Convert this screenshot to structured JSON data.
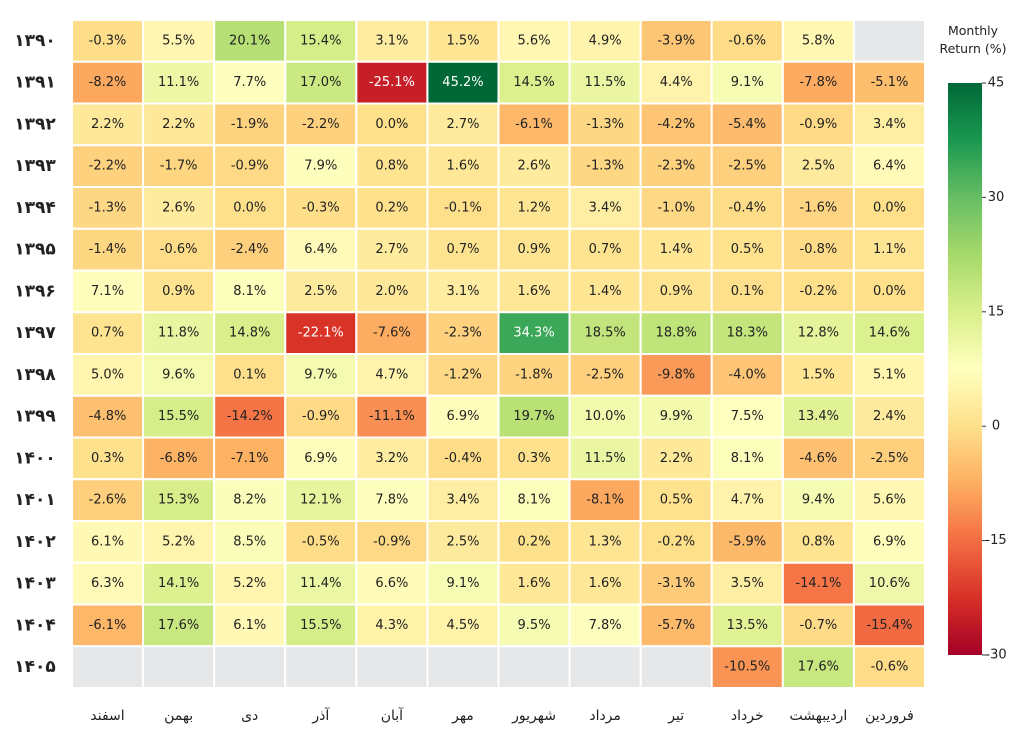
{
  "chart_data": {
    "type": "heatmap",
    "rows": [
      "۱۳۹۰",
      "۱۳۹۱",
      "۱۳۹۲",
      "۱۳۹۳",
      "۱۳۹۴",
      "۱۳۹۵",
      "۱۳۹۶",
      "۱۳۹۷",
      "۱۳۹۸",
      "۱۳۹۹",
      "۱۴۰۰",
      "۱۴۰۱",
      "۱۴۰۲",
      "۱۴۰۳",
      "۱۴۰۴",
      "۱۴۰۵"
    ],
    "columns": [
      "اسفند",
      "بهمن",
      "دی",
      "آذر",
      "آبان",
      "مهر",
      "شهریور",
      "مرداد",
      "تیر",
      "خرداد",
      "اردیبهشت",
      "فروردین"
    ],
    "values": [
      [
        -0.3,
        5.5,
        20.1,
        15.4,
        3.1,
        1.5,
        5.6,
        4.9,
        -3.9,
        -0.6,
        5.8,
        null
      ],
      [
        -8.2,
        11.1,
        7.7,
        17.0,
        -25.1,
        45.2,
        14.5,
        11.5,
        4.4,
        9.1,
        -7.8,
        -5.1
      ],
      [
        2.2,
        2.2,
        -1.9,
        -2.2,
        0.0,
        2.7,
        -6.1,
        -1.3,
        -4.2,
        -5.4,
        -0.9,
        3.4
      ],
      [
        -2.2,
        -1.7,
        -0.9,
        7.9,
        0.8,
        1.6,
        2.6,
        -1.3,
        -2.3,
        -2.5,
        2.5,
        6.4
      ],
      [
        -1.3,
        2.6,
        0.0,
        -0.3,
        0.2,
        -0.1,
        1.2,
        3.4,
        -1.0,
        -0.4,
        -1.6,
        0.0
      ],
      [
        -1.4,
        -0.6,
        -2.4,
        6.4,
        2.7,
        0.7,
        0.9,
        0.7,
        1.4,
        0.5,
        -0.8,
        1.1
      ],
      [
        7.1,
        0.9,
        8.1,
        2.5,
        2.0,
        3.1,
        1.6,
        1.4,
        0.9,
        0.1,
        -0.2,
        0.0
      ],
      [
        0.7,
        11.8,
        14.8,
        -22.1,
        -7.6,
        -2.3,
        34.3,
        18.5,
        18.8,
        18.3,
        12.8,
        14.6
      ],
      [
        5.0,
        9.6,
        0.1,
        9.7,
        4.7,
        -1.2,
        -1.8,
        -2.5,
        -9.8,
        -4.0,
        1.5,
        5.1
      ],
      [
        -4.8,
        15.5,
        -14.2,
        -0.9,
        -11.1,
        6.9,
        19.7,
        10.0,
        9.9,
        7.5,
        13.4,
        2.4
      ],
      [
        0.3,
        -6.8,
        -7.1,
        6.9,
        3.2,
        -0.4,
        0.3,
        11.5,
        2.2,
        8.1,
        -4.6,
        -2.5
      ],
      [
        -2.6,
        15.3,
        8.2,
        12.1,
        7.8,
        3.4,
        8.1,
        -8.1,
        0.5,
        4.7,
        9.4,
        5.6
      ],
      [
        6.1,
        5.2,
        8.5,
        -0.5,
        -0.9,
        2.5,
        0.2,
        1.3,
        -0.2,
        -5.9,
        0.8,
        6.9
      ],
      [
        6.3,
        14.1,
        5.2,
        11.4,
        6.6,
        9.1,
        1.6,
        1.6,
        -3.1,
        3.5,
        -14.1,
        10.6
      ],
      [
        -6.1,
        17.6,
        6.1,
        15.5,
        4.3,
        4.5,
        9.5,
        7.8,
        -5.7,
        13.5,
        -0.7,
        -15.4
      ],
      [
        null,
        null,
        null,
        null,
        null,
        null,
        null,
        null,
        null,
        -10.5,
        17.6,
        -0.6
      ]
    ],
    "value_labels": [
      [
        "-0.3%",
        "5.5%",
        "20.1%",
        "15.4%",
        "3.1%",
        "1.5%",
        "5.6%",
        "4.9%",
        "-3.9%",
        "-0.6%",
        "5.8%",
        null
      ],
      [
        "-8.2%",
        "11.1%",
        "7.7%",
        "17.0%",
        "-25.1%",
        "45.2%",
        "14.5%",
        "11.5%",
        "4.4%",
        "9.1%",
        "-7.8%",
        "-5.1%"
      ],
      [
        "2.2%",
        "2.2%",
        "-1.9%",
        "-2.2%",
        "0.0%",
        "2.7%",
        "-6.1%",
        "-1.3%",
        "-4.2%",
        "-5.4%",
        "-0.9%",
        "3.4%"
      ],
      [
        "-2.2%",
        "-1.7%",
        "-0.9%",
        "7.9%",
        "0.8%",
        "1.6%",
        "2.6%",
        "-1.3%",
        "-2.3%",
        "-2.5%",
        "2.5%",
        "6.4%"
      ],
      [
        "-1.3%",
        "2.6%",
        "0.0%",
        "-0.3%",
        "0.2%",
        "-0.1%",
        "1.2%",
        "3.4%",
        "-1.0%",
        "-0.4%",
        "-1.6%",
        "0.0%"
      ],
      [
        "-1.4%",
        "-0.6%",
        "-2.4%",
        "6.4%",
        "2.7%",
        "0.7%",
        "0.9%",
        "0.7%",
        "1.4%",
        "0.5%",
        "-0.8%",
        "1.1%"
      ],
      [
        "7.1%",
        "0.9%",
        "8.1%",
        "2.5%",
        "2.0%",
        "3.1%",
        "1.6%",
        "1.4%",
        "0.9%",
        "0.1%",
        "-0.2%",
        "0.0%"
      ],
      [
        "0.7%",
        "11.8%",
        "14.8%",
        "-22.1%",
        "-7.6%",
        "-2.3%",
        "34.3%",
        "18.5%",
        "18.8%",
        "18.3%",
        "12.8%",
        "14.6%"
      ],
      [
        "5.0%",
        "9.6%",
        "0.1%",
        "9.7%",
        "4.7%",
        "-1.2%",
        "-1.8%",
        "-2.5%",
        "-9.8%",
        "-4.0%",
        "1.5%",
        "5.1%"
      ],
      [
        "-4.8%",
        "15.5%",
        "-14.2%",
        "-0.9%",
        "-11.1%",
        "6.9%",
        "19.7%",
        "10.0%",
        "9.9%",
        "7.5%",
        "13.4%",
        "2.4%"
      ],
      [
        "0.3%",
        "-6.8%",
        "-7.1%",
        "6.9%",
        "3.2%",
        "-0.4%",
        "0.3%",
        "11.5%",
        "2.2%",
        "8.1%",
        "-4.6%",
        "-2.5%"
      ],
      [
        "-2.6%",
        "15.3%",
        "8.2%",
        "12.1%",
        "7.8%",
        "3.4%",
        "8.1%",
        "-8.1%",
        "0.5%",
        "4.7%",
        "9.4%",
        "5.6%"
      ],
      [
        "6.1%",
        "5.2%",
        "8.5%",
        "-0.5%",
        "-0.9%",
        "2.5%",
        "0.2%",
        "1.3%",
        "-0.2%",
        "-5.9%",
        "0.8%",
        "6.9%"
      ],
      [
        "6.3%",
        "14.1%",
        "5.2%",
        "11.4%",
        "6.6%",
        "9.1%",
        "1.6%",
        "1.6%",
        "-3.1%",
        "3.5%",
        "-14.1%",
        "10.6%"
      ],
      [
        "-6.1%",
        "17.6%",
        "6.1%",
        "15.5%",
        "4.3%",
        "4.5%",
        "9.5%",
        "7.8%",
        "-5.7%",
        "13.5%",
        "-0.7%",
        "-15.4%"
      ],
      [
        null,
        null,
        null,
        null,
        null,
        null,
        null,
        null,
        null,
        "-10.5%",
        "17.6%",
        "-0.6%"
      ]
    ],
    "colormap": "RdYlGn",
    "colorbar": {
      "label": "Monthly Return (%)",
      "lim": [
        -30,
        45
      ],
      "ticks": [
        45,
        30,
        15,
        0,
        -15,
        -30
      ]
    }
  }
}
